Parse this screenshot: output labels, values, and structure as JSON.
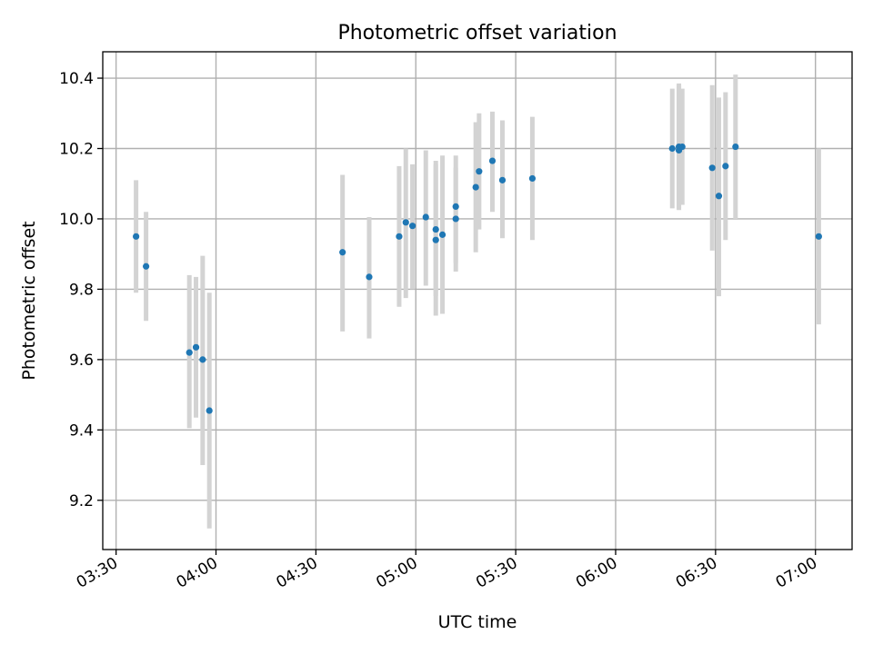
{
  "chart_data": {
    "type": "scatter",
    "title": "Photometric offset variation",
    "xlabel": "UTC time",
    "ylabel": "Photometric offset",
    "x_axis": {
      "kind": "time",
      "range": [
        "03:26",
        "07:11"
      ],
      "ticks": [
        "03:30",
        "04:00",
        "04:30",
        "05:00",
        "05:30",
        "06:00",
        "06:30",
        "07:00"
      ]
    },
    "y_axis": {
      "range": [
        9.06,
        10.475
      ],
      "ticks": [
        "9.2",
        "9.4",
        "9.6",
        "9.8",
        "10.0",
        "10.2",
        "10.4"
      ]
    },
    "grid": true,
    "colors": {
      "point": "#1f77b4",
      "errorbar": "#d3d3d3",
      "grid": "#b0b0b0"
    },
    "points": [
      {
        "t": "03:36",
        "y": 9.95,
        "ylo": 9.79,
        "yhi": 10.11
      },
      {
        "t": "03:39",
        "y": 9.865,
        "ylo": 9.71,
        "yhi": 10.02
      },
      {
        "t": "03:52",
        "y": 9.62,
        "ylo": 9.405,
        "yhi": 9.84
      },
      {
        "t": "03:54",
        "y": 9.635,
        "ylo": 9.435,
        "yhi": 9.835
      },
      {
        "t": "03:56",
        "y": 9.6,
        "ylo": 9.3,
        "yhi": 9.895
      },
      {
        "t": "03:58",
        "y": 9.455,
        "ylo": 9.12,
        "yhi": 9.79
      },
      {
        "t": "04:38",
        "y": 9.905,
        "ylo": 9.68,
        "yhi": 10.125
      },
      {
        "t": "04:46",
        "y": 9.835,
        "ylo": 9.66,
        "yhi": 10.005
      },
      {
        "t": "04:55",
        "y": 9.95,
        "ylo": 9.75,
        "yhi": 10.15
      },
      {
        "t": "04:57",
        "y": 9.99,
        "ylo": 9.775,
        "yhi": 10.2
      },
      {
        "t": "04:59",
        "y": 9.98,
        "ylo": 9.8,
        "yhi": 10.155
      },
      {
        "t": "05:03",
        "y": 10.005,
        "ylo": 9.81,
        "yhi": 10.195
      },
      {
        "t": "05:06",
        "y": 9.97,
        "ylo": 9.78,
        "yhi": 10.165
      },
      {
        "t": "05:06",
        "y": 9.94,
        "ylo": 9.725,
        "yhi": 10.155
      },
      {
        "t": "05:08",
        "y": 9.955,
        "ylo": 9.73,
        "yhi": 10.18
      },
      {
        "t": "05:12",
        "y": 10.0,
        "ylo": 9.85,
        "yhi": 10.145
      },
      {
        "t": "05:12",
        "y": 10.035,
        "ylo": 9.875,
        "yhi": 10.18
      },
      {
        "t": "05:18",
        "y": 10.09,
        "ylo": 9.905,
        "yhi": 10.275
      },
      {
        "t": "05:19",
        "y": 10.135,
        "ylo": 9.97,
        "yhi": 10.3
      },
      {
        "t": "05:23",
        "y": 10.165,
        "ylo": 10.02,
        "yhi": 10.305
      },
      {
        "t": "05:26",
        "y": 10.11,
        "ylo": 9.945,
        "yhi": 10.28
      },
      {
        "t": "05:35",
        "y": 10.115,
        "ylo": 9.94,
        "yhi": 10.29
      },
      {
        "t": "06:17",
        "y": 10.2,
        "ylo": 10.03,
        "yhi": 10.37
      },
      {
        "t": "06:19",
        "y": 10.195,
        "ylo": 10.025,
        "yhi": 10.385
      },
      {
        "t": "06:19",
        "y": 10.205,
        "ylo": 10.03,
        "yhi": 10.38
      },
      {
        "t": "06:20",
        "y": 10.205,
        "ylo": 10.04,
        "yhi": 10.37
      },
      {
        "t": "06:29",
        "y": 10.145,
        "ylo": 9.91,
        "yhi": 10.38
      },
      {
        "t": "06:31",
        "y": 10.065,
        "ylo": 9.78,
        "yhi": 10.345
      },
      {
        "t": "06:33",
        "y": 10.15,
        "ylo": 9.94,
        "yhi": 10.36
      },
      {
        "t": "06:36",
        "y": 10.205,
        "ylo": 10.0,
        "yhi": 10.41
      },
      {
        "t": "07:01",
        "y": 9.95,
        "ylo": 9.7,
        "yhi": 10.2
      }
    ]
  }
}
